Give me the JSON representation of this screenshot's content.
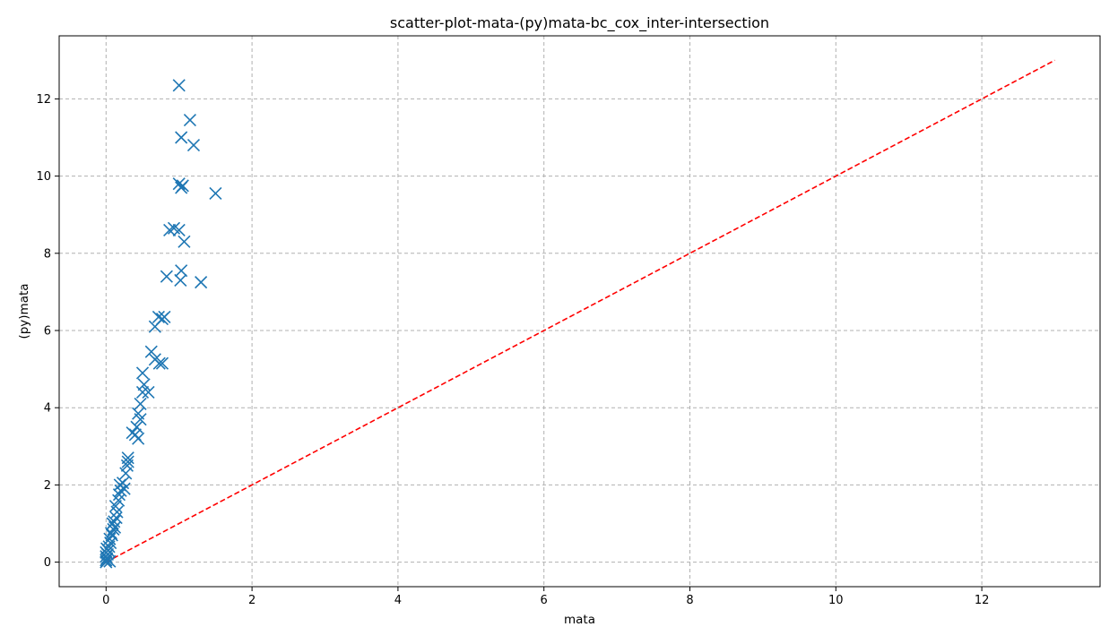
{
  "chart_data": {
    "type": "scatter",
    "title": "scatter-plot-mata-(py)mata-bc_cox_inter-intersection",
    "xlabel": "mata",
    "ylabel": "(py)mata",
    "xlim": [
      -0.65,
      13.0
    ],
    "ylim": [
      -0.65,
      13.65
    ],
    "grid": true,
    "xticks": [
      "0",
      "2",
      "4",
      "6",
      "8",
      "10",
      "12"
    ],
    "yticks": [
      "0",
      "2",
      "4",
      "6",
      "8",
      "10",
      "12"
    ],
    "marker_color": "#1f77b4",
    "marker": "x",
    "reference_line": {
      "from": [
        0,
        0
      ],
      "to": [
        13,
        13
      ],
      "color": "#ff0000",
      "style": "dashed"
    },
    "points": [
      [
        0.0,
        0.0
      ],
      [
        0.0,
        0.05
      ],
      [
        0.01,
        0.1
      ],
      [
        0.0,
        0.15
      ],
      [
        0.02,
        0.2
      ],
      [
        0.0,
        0.25
      ],
      [
        0.03,
        0.3
      ],
      [
        0.01,
        0.35
      ],
      [
        0.04,
        0.4
      ],
      [
        0.05,
        0.02
      ],
      [
        0.06,
        0.5
      ],
      [
        0.05,
        0.6
      ],
      [
        0.08,
        0.7
      ],
      [
        0.07,
        0.75
      ],
      [
        0.1,
        0.85
      ],
      [
        0.09,
        1.0
      ],
      [
        0.12,
        0.9
      ],
      [
        0.11,
        1.05
      ],
      [
        0.14,
        1.15
      ],
      [
        0.15,
        1.3
      ],
      [
        0.13,
        1.45
      ],
      [
        0.17,
        1.6
      ],
      [
        0.18,
        1.75
      ],
      [
        0.2,
        1.85
      ],
      [
        0.19,
        2.0
      ],
      [
        0.23,
        2.05
      ],
      [
        0.25,
        1.9
      ],
      [
        0.27,
        2.3
      ],
      [
        0.29,
        2.5
      ],
      [
        0.3,
        2.6
      ],
      [
        0.3,
        2.7
      ],
      [
        0.36,
        3.35
      ],
      [
        0.4,
        3.3
      ],
      [
        0.44,
        3.2
      ],
      [
        0.42,
        3.5
      ],
      [
        0.47,
        3.7
      ],
      [
        0.44,
        3.85
      ],
      [
        0.47,
        4.1
      ],
      [
        0.5,
        4.4
      ],
      [
        0.52,
        4.6
      ],
      [
        0.5,
        4.9
      ],
      [
        0.58,
        4.4
      ],
      [
        0.62,
        5.45
      ],
      [
        0.67,
        5.25
      ],
      [
        0.73,
        5.15
      ],
      [
        0.77,
        5.15
      ],
      [
        0.67,
        6.1
      ],
      [
        0.72,
        6.35
      ],
      [
        0.77,
        6.3
      ],
      [
        0.8,
        6.35
      ],
      [
        0.83,
        7.4
      ],
      [
        0.87,
        8.6
      ],
      [
        0.93,
        8.65
      ],
      [
        1.0,
        8.6
      ],
      [
        1.02,
        7.3
      ],
      [
        1.03,
        7.55
      ],
      [
        1.07,
        8.3
      ],
      [
        1.0,
        9.8
      ],
      [
        1.03,
        9.7
      ],
      [
        1.05,
        9.75
      ],
      [
        1.03,
        11.0
      ],
      [
        1.0,
        12.35
      ],
      [
        1.15,
        11.45
      ],
      [
        1.2,
        10.8
      ],
      [
        1.3,
        7.25
      ],
      [
        1.5,
        9.55
      ]
    ]
  }
}
